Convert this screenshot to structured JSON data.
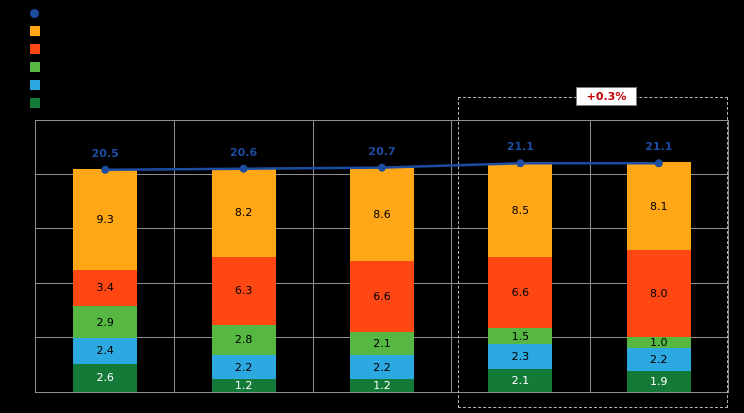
{
  "annotation": {
    "label": "+0.3%",
    "text_color": "#C00000"
  },
  "colors": {
    "background": "#000000",
    "grid": "#8f8f8f",
    "line": "#1C4DA1"
  },
  "legend": {
    "position": "top-left",
    "items": [
      {
        "name": "total-line-marker",
        "shape": "circle",
        "color": "#1C4DA1"
      },
      {
        "name": "series-orange",
        "shape": "square",
        "color": "#FFA717"
      },
      {
        "name": "series-red",
        "shape": "square",
        "color": "#FF4713"
      },
      {
        "name": "series-green",
        "shape": "square",
        "color": "#56B843"
      },
      {
        "name": "series-lightblue",
        "shape": "square",
        "color": "#2BA9E0"
      },
      {
        "name": "series-darkgreen",
        "shape": "square",
        "color": "#147A38"
      }
    ]
  },
  "chart_data": {
    "type": "bar",
    "subtype": "stacked-column-with-total-line",
    "categories": [
      "",
      "",
      "",
      "",
      ""
    ],
    "series": [
      {
        "name": "darkgreen",
        "color": "#147A38",
        "label_color": "#FFFFFF",
        "values": [
          2.6,
          1.2,
          1.2,
          2.1,
          1.9
        ]
      },
      {
        "name": "lightblue",
        "color": "#2BA9E0",
        "label_color": "#000000",
        "values": [
          2.4,
          2.2,
          2.2,
          2.3,
          2.2
        ]
      },
      {
        "name": "green",
        "color": "#56B843",
        "label_color": "#000000",
        "values": [
          2.9,
          2.8,
          2.1,
          1.5,
          1.0
        ]
      },
      {
        "name": "red",
        "color": "#FF4713",
        "label_color": "#000000",
        "values": [
          3.4,
          6.3,
          6.6,
          6.6,
          8.0
        ]
      },
      {
        "name": "orange",
        "color": "#FFA717",
        "label_color": "#000000",
        "values": [
          9.3,
          8.2,
          8.6,
          8.5,
          8.1
        ]
      }
    ],
    "line_series": {
      "name": "total",
      "color": "#1C4DA1",
      "values": [
        20.5,
        20.6,
        20.7,
        21.1,
        21.1
      ]
    },
    "ylim": [
      0,
      25
    ],
    "grid_steps": 5,
    "grid": true,
    "legend_position": "top-left",
    "highlight": {
      "category_start": 3,
      "category_end": 4,
      "annotation": "+0.3%"
    }
  }
}
